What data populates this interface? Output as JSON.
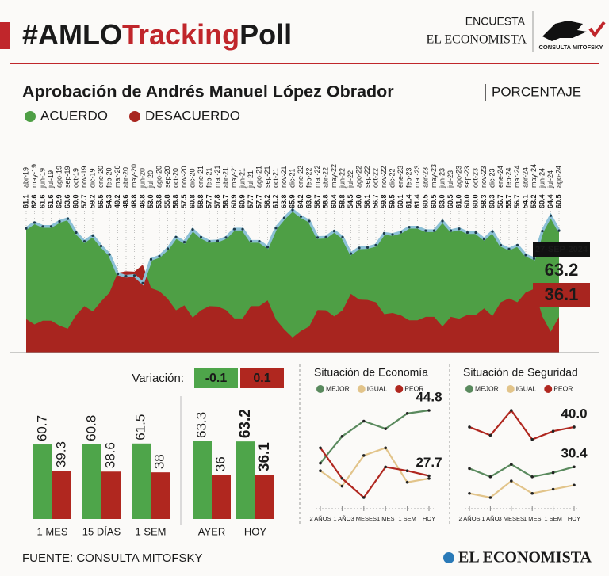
{
  "header": {
    "title_parts": [
      "#AMLO",
      "Tracking",
      "Poll"
    ],
    "survey": "ENCUESTA",
    "outlet": "EL ECONOMISTA",
    "pollster": "CONSULTA MITOFSKY"
  },
  "chart_data": [
    {
      "type": "area",
      "title": "Aprobación de Andrés Manuel López Obrador",
      "subtitle": "PORCENTAJE",
      "categories": [
        "abr-19",
        "may-19",
        "jun-19",
        "jul-19",
        "ago-19",
        "sep-19",
        "oct-19",
        "nov-19",
        "dic-19",
        "ene-20",
        "feb-20",
        "mar-20",
        "abr-20",
        "may-20",
        "jun-20",
        "jul-20",
        "ago-20",
        "sep-20",
        "oct-20",
        "nov-20",
        "dic-20",
        "ene-21",
        "feb-21",
        "mar-21",
        "abr-21",
        "may-21",
        "jun-21",
        "jul-21",
        "ago-21",
        "sep-21",
        "oct-21",
        "nov-21",
        "dic-21",
        "ene-22",
        "feb-22",
        "mar-22",
        "abr-22",
        "may-22",
        "jun-22",
        "jul-22",
        "ago-22",
        "sep-22",
        "oct-22",
        "nov-22",
        "dic-22",
        "ene-23",
        "feb-23",
        "mar-23",
        "abr-23",
        "may-23",
        "jun-23",
        "jul-23",
        "ago-23",
        "sep-23",
        "oct-23",
        "nov-23",
        "dic-23",
        "ene-24",
        "feb-24",
        "mar-24",
        "abr-24",
        "may-24",
        "jun-24",
        "jul-24",
        "ago-24"
      ],
      "series": [
        {
          "name": "ACUERDO",
          "color": "#4e9f45",
          "values": [
            61.1,
            62.6,
            61.6,
            61.6,
            62.9,
            63.6,
            60.0,
            57.7,
            59.2,
            56.5,
            54.3,
            49.2,
            48.6,
            48.8,
            46.8,
            53.0,
            53.8,
            55.8,
            58.8,
            57.5,
            60.8,
            58.8,
            57.7,
            57.8,
            58.7,
            60.9,
            60.9,
            57.7,
            57.7,
            56.2,
            61.2,
            63.8,
            65.9,
            64.2,
            63.0,
            58.7,
            58.8,
            60.4,
            58.8,
            54.5,
            56.0,
            56.1,
            56.7,
            59.8,
            59.5,
            60.1,
            61.4,
            61.4,
            60.5,
            60.5,
            63.0,
            60.5,
            61.0,
            60.0,
            60.0,
            58.3,
            60.3,
            56.7,
            55.7,
            56.7,
            54.1,
            53.2,
            60.4,
            64.4,
            60.5
          ],
          "value_labels": [
            "61.1",
            "62.6",
            "61.6",
            "61.6",
            "62.9",
            "63.6",
            "60.0",
            "57.7",
            "59.2",
            "56.5",
            "54.3",
            "49.2",
            "48.6",
            "48.8",
            "46.8",
            "53.0",
            "53.8",
            "55.8",
            "58.8",
            "57.5",
            "60.8",
            "58.8",
            "57.7",
            "57.8",
            "58.7",
            "60.9",
            "60.9",
            "57.7",
            "57.7",
            "56.2",
            "61.2",
            "63.8",
            "65.9",
            "64.2",
            "63.0",
            "58.7",
            "58.8",
            "60.4",
            "58.8",
            "54.5",
            "56.0",
            "56.1",
            "56.7",
            "59.8",
            "59.5",
            "60.1",
            "61.4",
            "61.4",
            "60.5",
            "60.5",
            "63.0",
            "60.5",
            "61.0",
            "60.0",
            "60.0",
            "58.3",
            "60.3",
            "56.7",
            "55.7",
            "56.7",
            "54.1",
            "53.2",
            "60.4",
            "64.4",
            "60.5"
          ]
        },
        {
          "name": "DESACUERDO",
          "color": "#a8251f",
          "values": [
            37.4,
            36.0,
            37.0,
            37.0,
            35.7,
            34.9,
            38.5,
            40.8,
            39.4,
            42.0,
            44.3,
            49.5,
            49.9,
            49.8,
            51.6,
            45.5,
            44.7,
            42.7,
            39.7,
            41.0,
            37.8,
            39.7,
            40.8,
            40.7,
            39.8,
            37.6,
            37.6,
            40.8,
            40.8,
            42.3,
            37.3,
            34.7,
            32.6,
            34.3,
            35.5,
            39.8,
            39.7,
            38.1,
            39.7,
            44.0,
            42.5,
            42.4,
            41.8,
            38.7,
            39.0,
            38.4,
            37.1,
            37.1,
            38.0,
            38.0,
            35.5,
            38.0,
            37.5,
            38.5,
            38.5,
            40.2,
            38.2,
            41.8,
            42.8,
            41.8,
            44.4,
            45.3,
            38.1,
            34.1,
            38.0
          ]
        }
      ],
      "latest": {
        "date": "27-SEP-2024",
        "values": [
          63.2,
          36.1
        ]
      }
    },
    {
      "type": "grouped_bar",
      "categories": [
        "1 MES",
        "15 DÍAS",
        "1 SEM",
        "AYER",
        "HOY"
      ],
      "series": [
        {
          "color": "#4ea54a",
          "values": [
            60.7,
            60.8,
            61.5,
            63.3,
            63.2
          ]
        },
        {
          "color": "#b0271f",
          "values": [
            39.3,
            38.6,
            38.0,
            36.0,
            36.1
          ]
        }
      ],
      "variation": {
        "label": "Variación:",
        "values": [
          -0.1,
          0.1
        ]
      }
    },
    {
      "type": "line",
      "title": "Situación de Economía",
      "categories": [
        "2 AÑOS",
        "1 AÑO",
        "3 MESES",
        "1 MES",
        "1 SEM",
        "HOY"
      ],
      "series": [
        {
          "name": "MEJOR",
          "color": "#5a8a5e",
          "values": [
            31,
            38,
            42,
            40,
            44,
            44.8
          ],
          "end_label": true
        },
        {
          "name": "IGUAL",
          "color": "#e2c48a",
          "values": [
            29,
            25,
            33,
            35,
            26,
            27
          ]
        },
        {
          "name": "PEOR",
          "color": "#b0271f",
          "values": [
            35,
            27,
            22,
            30,
            29,
            27.7
          ],
          "end_label": true
        }
      ]
    },
    {
      "type": "line",
      "title": "Situación de Seguridad",
      "categories": [
        "2 AÑOS",
        "1 AÑO",
        "3 MESES",
        "1 MES",
        "1 SEM",
        "HOY"
      ],
      "series": [
        {
          "name": "MEJOR",
          "color": "#5a8a5e",
          "values": [
            30,
            28,
            31,
            28,
            29,
            30.4
          ],
          "end_label": true
        },
        {
          "name": "IGUAL",
          "color": "#e2c48a",
          "values": [
            24,
            23,
            27,
            24,
            25,
            26
          ]
        },
        {
          "name": "PEOR",
          "color": "#b0271f",
          "values": [
            40,
            38,
            44,
            37,
            39,
            40
          ],
          "value_labels": [
            null,
            null,
            null,
            null,
            null,
            "40.0"
          ],
          "end_label": true
        }
      ]
    }
  ],
  "footer": {
    "source": "FUENTE: CONSULTA MITOFSKY",
    "brand": "EL ECONOMISTA"
  }
}
